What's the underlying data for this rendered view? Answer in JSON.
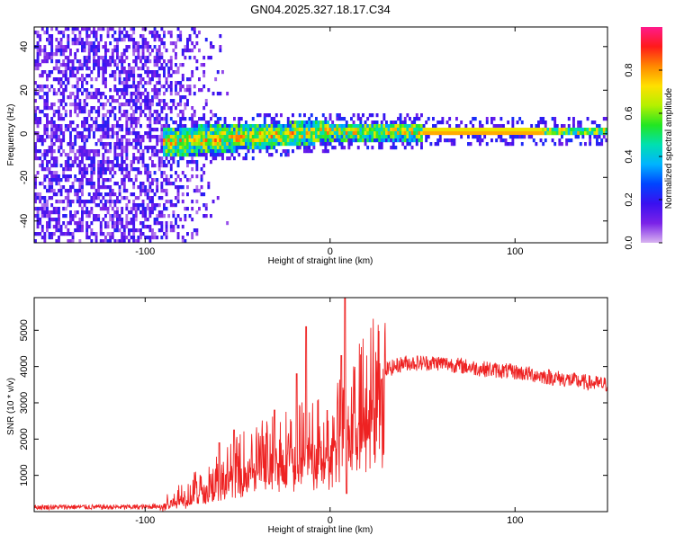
{
  "figure": {
    "title": "GN04.2025.327.18.17.C34"
  },
  "chart_data": [
    {
      "type": "heatmap",
      "title": "GN04.2025.327.18.17.C34",
      "xlabel": "Height of straight line (km)",
      "ylabel": "Frequency (Hz)",
      "xlim": [
        -160,
        150
      ],
      "ylim": [
        -50,
        49
      ],
      "xticks": [
        -100,
        0,
        100
      ],
      "yticks": [
        -40,
        -20,
        0,
        20,
        40
      ],
      "colorbar": {
        "label": "Normalized spectral amplitude",
        "range": [
          0.0,
          1.0
        ],
        "ticks": [
          0.0,
          0.2,
          0.4,
          0.6,
          0.8
        ],
        "colormap": [
          "#d8b4f0",
          "#7a22e8",
          "#3a10f0",
          "#0044ff",
          "#00b4ff",
          "#00e0b0",
          "#22e622",
          "#b4f000",
          "#ffe000",
          "#ff8800",
          "#ff1a1a",
          "#ff1a8c"
        ]
      },
      "description_features": {
        "noise_region_x": [
          -160,
          -90
        ],
        "noise_fade_x": [
          -90,
          -55
        ],
        "signal_band_start_x": -90,
        "narrowband_tone_x": [
          50,
          115
        ],
        "narrowband_tone_freq": 0
      }
    },
    {
      "type": "line",
      "xlabel": "Height of straight line (km)",
      "ylabel": "SNR (10 * v/v)",
      "xlim": [
        -160,
        150
      ],
      "ylim": [
        0,
        5900
      ],
      "xticks": [
        -100,
        0,
        100
      ],
      "yticks": [
        1000,
        2000,
        3000,
        4000,
        5000
      ],
      "series": [
        {
          "name": "SNR",
          "color": "#ee2222",
          "envelope_points": [
            {
              "x": -160,
              "y": 120
            },
            {
              "x": -140,
              "y": 130
            },
            {
              "x": -120,
              "y": 125
            },
            {
              "x": -100,
              "y": 130
            },
            {
              "x": -92,
              "y": 160
            },
            {
              "x": -85,
              "y": 350
            },
            {
              "x": -70,
              "y": 700
            },
            {
              "x": -60,
              "y": 1000
            },
            {
              "x": -50,
              "y": 1250
            },
            {
              "x": -40,
              "y": 1500
            },
            {
              "x": -30,
              "y": 1700
            },
            {
              "x": -20,
              "y": 1800
            },
            {
              "x": -10,
              "y": 1900
            },
            {
              "x": 0,
              "y": 2000
            },
            {
              "x": 10,
              "y": 2600
            },
            {
              "x": 20,
              "y": 3300
            },
            {
              "x": 30,
              "y": 3900
            },
            {
              "x": 40,
              "y": 4100
            },
            {
              "x": 60,
              "y": 4100
            },
            {
              "x": 80,
              "y": 3950
            },
            {
              "x": 100,
              "y": 3850
            },
            {
              "x": 120,
              "y": 3700
            },
            {
              "x": 140,
              "y": 3550
            },
            {
              "x": 150,
              "y": 3500
            }
          ],
          "spikes": [
            {
              "x": 8,
              "y": 5900
            },
            {
              "x": 6,
              "y": 4300
            },
            {
              "x": -13,
              "y": 5100
            },
            {
              "x": -18,
              "y": 3800
            },
            {
              "x": -30,
              "y": 2800
            },
            {
              "x": -52,
              "y": 2250
            },
            {
              "x": -60,
              "y": 1900
            },
            {
              "x": 9,
              "y": 500
            }
          ]
        }
      ]
    }
  ]
}
